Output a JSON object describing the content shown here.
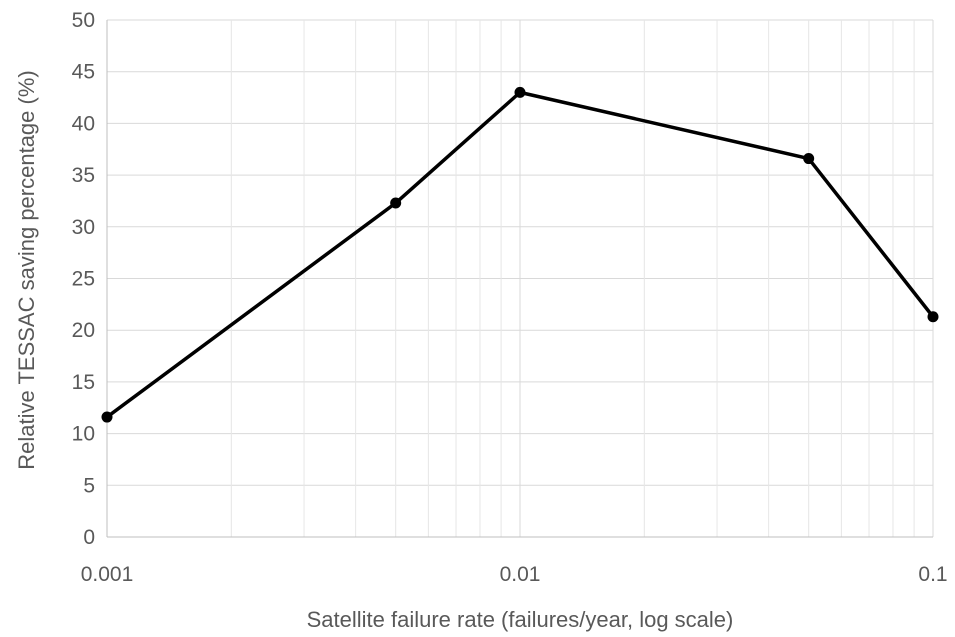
{
  "chart_data": {
    "type": "line",
    "title": "",
    "xlabel": "Satellite failure rate (failures/year, log scale)",
    "ylabel": "Relative TESSAC saving percentage (%)",
    "x_scale": "log",
    "xlim": [
      0.001,
      0.1
    ],
    "ylim": [
      0,
      50
    ],
    "x_ticks": [
      "0.001",
      "0.01",
      "0.1"
    ],
    "y_ticks": [
      "0",
      "5",
      "10",
      "15",
      "20",
      "25",
      "30",
      "35",
      "40",
      "45",
      "50"
    ],
    "grid": "on",
    "legend": "none",
    "series": [
      {
        "color": "#000000",
        "points": [
          {
            "x": 0.001,
            "y": 11.6
          },
          {
            "x": 0.005,
            "y": 32.3
          },
          {
            "x": 0.01,
            "y": 43.0
          },
          {
            "x": 0.05,
            "y": 36.6
          },
          {
            "x": 0.1,
            "y": 21.3
          }
        ]
      }
    ]
  }
}
